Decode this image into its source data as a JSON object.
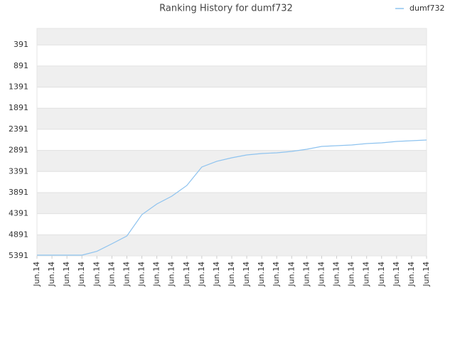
{
  "chart_data": {
    "type": "line",
    "title": "Ranking History for dumf732",
    "categories": [
      "Jun.14",
      "Jun.14",
      "Jun.14",
      "Jun.14",
      "Jun.14",
      "Jun.14",
      "Jun.14",
      "Jun.14",
      "Jun.14",
      "Jun.14",
      "Jun.14",
      "Jun.14",
      "Jun.14",
      "Jun.14",
      "Jun.14",
      "Jun.14",
      "Jun.14",
      "Jun.14",
      "Jun.14",
      "Jun.14",
      "Jun.14",
      "Jun.14",
      "Jun.14",
      "Jun.14",
      "Jun.14",
      "Jun.14",
      "Jun.14"
    ],
    "series": [
      {
        "name": "dumf732",
        "color": "#8ec3ef",
        "values": [
          5374,
          5374,
          5374,
          5374,
          5283,
          5105,
          4919,
          4414,
          4161,
          3976,
          3723,
          3285,
          3150,
          3066,
          2999,
          2965,
          2948,
          2915,
          2864,
          2797,
          2780,
          2763,
          2729,
          2712,
          2679,
          2662,
          2645
        ]
      }
    ],
    "ylim": [
      5391,
      0
    ],
    "yticks": [
      391,
      891,
      1391,
      1891,
      2391,
      2891,
      3391,
      3891,
      4391,
      4891,
      5391
    ],
    "grid": true,
    "legend": "top-right"
  }
}
